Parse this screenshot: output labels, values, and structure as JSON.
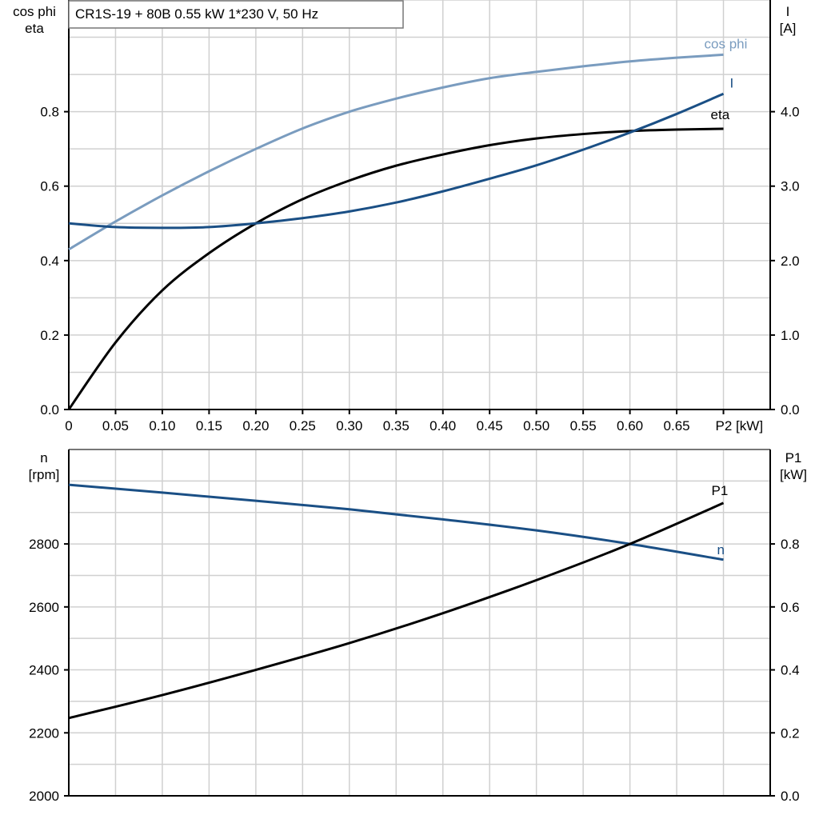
{
  "chart_data": [
    {
      "type": "line",
      "title": "CR1S-19 + 80B   0.55 kW   1*230 V, 50 Hz",
      "xlabel": "P2 [kW]",
      "ylabel_left": [
        "cos phi",
        "eta"
      ],
      "ylabel_right": [
        "I",
        "[A]"
      ],
      "xlim": [
        0,
        0.75
      ],
      "ylim_left": [
        0,
        1.1
      ],
      "ylim_right": [
        0,
        5.5
      ],
      "xticks": [
        "0",
        "0.05",
        "0.10",
        "0.15",
        "0.20",
        "0.25",
        "0.30",
        "0.35",
        "0.40",
        "0.45",
        "0.50",
        "0.55",
        "0.60",
        "0.65"
      ],
      "yticks_left": [
        "0.0",
        "0.2",
        "0.4",
        "0.6",
        "0.8"
      ],
      "yticks_right": [
        "0.0",
        "1.0",
        "2.0",
        "3.0",
        "4.0"
      ],
      "grid": true,
      "series": [
        {
          "name": "cos phi",
          "axis": "left",
          "color": "#7a9cbf",
          "x": [
            0,
            0.05,
            0.1,
            0.15,
            0.2,
            0.25,
            0.3,
            0.35,
            0.4,
            0.45,
            0.5,
            0.55,
            0.6,
            0.65,
            0.7
          ],
          "y": [
            0.43,
            0.505,
            0.575,
            0.64,
            0.7,
            0.755,
            0.8,
            0.835,
            0.865,
            0.89,
            0.907,
            0.922,
            0.935,
            0.945,
            0.953
          ]
        },
        {
          "name": "eta",
          "axis": "left",
          "color": "#000000",
          "x": [
            0,
            0.05,
            0.1,
            0.15,
            0.2,
            0.25,
            0.3,
            0.35,
            0.4,
            0.45,
            0.5,
            0.55,
            0.6,
            0.65,
            0.7
          ],
          "y": [
            0.0,
            0.18,
            0.32,
            0.42,
            0.5,
            0.565,
            0.615,
            0.655,
            0.685,
            0.71,
            0.728,
            0.74,
            0.748,
            0.752,
            0.754
          ]
        },
        {
          "name": "I",
          "axis": "right",
          "color": "#1a4f85",
          "x": [
            0,
            0.05,
            0.1,
            0.15,
            0.2,
            0.25,
            0.3,
            0.35,
            0.4,
            0.45,
            0.5,
            0.55,
            0.6,
            0.65,
            0.7
          ],
          "y": [
            2.5,
            2.45,
            2.44,
            2.45,
            2.5,
            2.57,
            2.66,
            2.78,
            2.93,
            3.1,
            3.28,
            3.49,
            3.72,
            3.97,
            4.24
          ]
        }
      ]
    },
    {
      "type": "line",
      "xlim": [
        0,
        0.75
      ],
      "ylabel_left": [
        "n",
        "[rpm]"
      ],
      "ylabel_right": [
        "P1",
        "[kW]"
      ],
      "ylim_left": [
        2000,
        3100
      ],
      "ylim_right": [
        0,
        1.1
      ],
      "yticks_left": [
        "2000",
        "2200",
        "2400",
        "2600",
        "2800"
      ],
      "yticks_right": [
        "0.0",
        "0.2",
        "0.4",
        "0.6",
        "0.8"
      ],
      "grid": true,
      "series": [
        {
          "name": "n",
          "axis": "left",
          "color": "#1a4f85",
          "x": [
            0,
            0.1,
            0.2,
            0.3,
            0.4,
            0.5,
            0.6,
            0.7
          ],
          "y": [
            2988,
            2963,
            2937,
            2910,
            2878,
            2843,
            2800,
            2750
          ]
        },
        {
          "name": "P1",
          "axis": "right",
          "color": "#000000",
          "x": [
            0,
            0.1,
            0.2,
            0.3,
            0.4,
            0.5,
            0.6,
            0.7
          ],
          "y": [
            0.247,
            0.32,
            0.4,
            0.485,
            0.58,
            0.685,
            0.8,
            0.93
          ]
        }
      ]
    }
  ]
}
